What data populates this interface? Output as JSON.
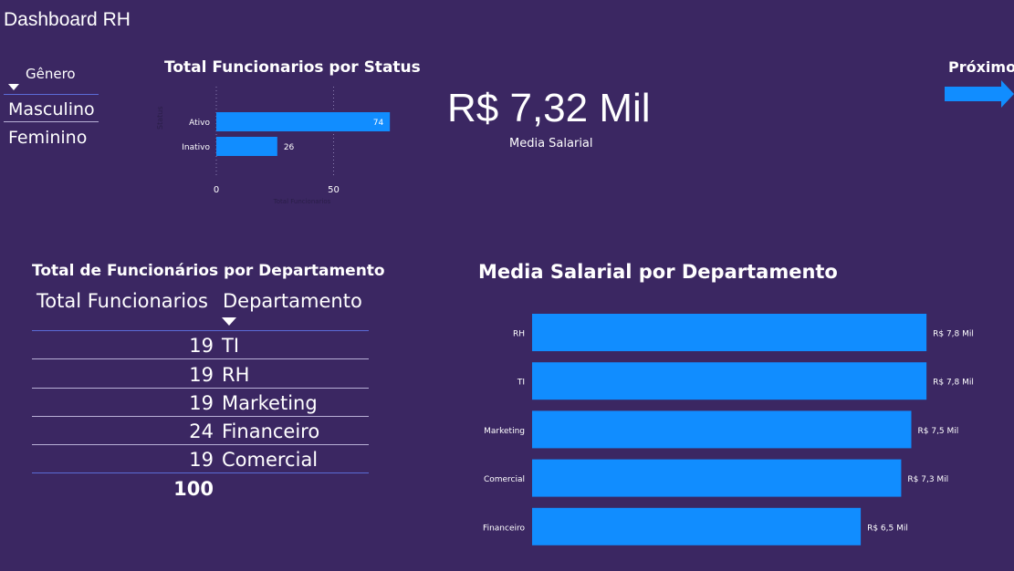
{
  "header": {
    "title": "Dashboard RH"
  },
  "gender_slicer": {
    "title": "Gênero",
    "items": [
      "Masculino",
      "Feminino"
    ]
  },
  "status_chart": {
    "title": "Total Funcionarios por Status",
    "xlabel": "Total Funcionarios",
    "ylabel": "Status",
    "ticks": [
      "0",
      "50"
    ]
  },
  "kpi": {
    "value": "R$ 7,32 Mil",
    "label": "Media Salarial"
  },
  "next_button": {
    "label": "Próximo"
  },
  "dept_table": {
    "title": "Total de Funcionários por Departamento",
    "columns": [
      "Total Funcionarios",
      "Departamento"
    ],
    "rows": [
      {
        "total": "19",
        "dept": "TI"
      },
      {
        "total": "19",
        "dept": "RH"
      },
      {
        "total": "19",
        "dept": "Marketing"
      },
      {
        "total": "24",
        "dept": "Financeiro"
      },
      {
        "total": "19",
        "dept": "Comercial"
      }
    ],
    "grand_total": "100"
  },
  "salary_chart": {
    "title": "Media Salarial por Departamento"
  },
  "colors": {
    "background": "#3b2762",
    "bar": "#118dff",
    "accent_line": "#5b6bd6"
  },
  "chart_data": [
    {
      "type": "bar",
      "orientation": "horizontal",
      "title": "Total Funcionarios por Status",
      "xlabel": "Total Funcionarios",
      "ylabel": "Status",
      "categories": [
        "Ativo",
        "Inativo"
      ],
      "values": [
        74,
        26
      ],
      "data_labels": [
        "74",
        "26"
      ],
      "xlim": [
        0,
        100
      ],
      "ticks": [
        0,
        50
      ]
    },
    {
      "type": "bar",
      "orientation": "horizontal",
      "title": "Media Salarial por Departamento",
      "categories": [
        "RH",
        "TI",
        "Marketing",
        "Comercial",
        "Financeiro"
      ],
      "values": [
        7.8,
        7.8,
        7.5,
        7.3,
        6.5
      ],
      "data_labels": [
        "R$ 7,8 Mil",
        "R$ 7,8 Mil",
        "R$ 7,5 Mil",
        "R$ 7,3 Mil",
        "R$ 6,5 Mil"
      ],
      "unit": "R$ Mil"
    }
  ]
}
